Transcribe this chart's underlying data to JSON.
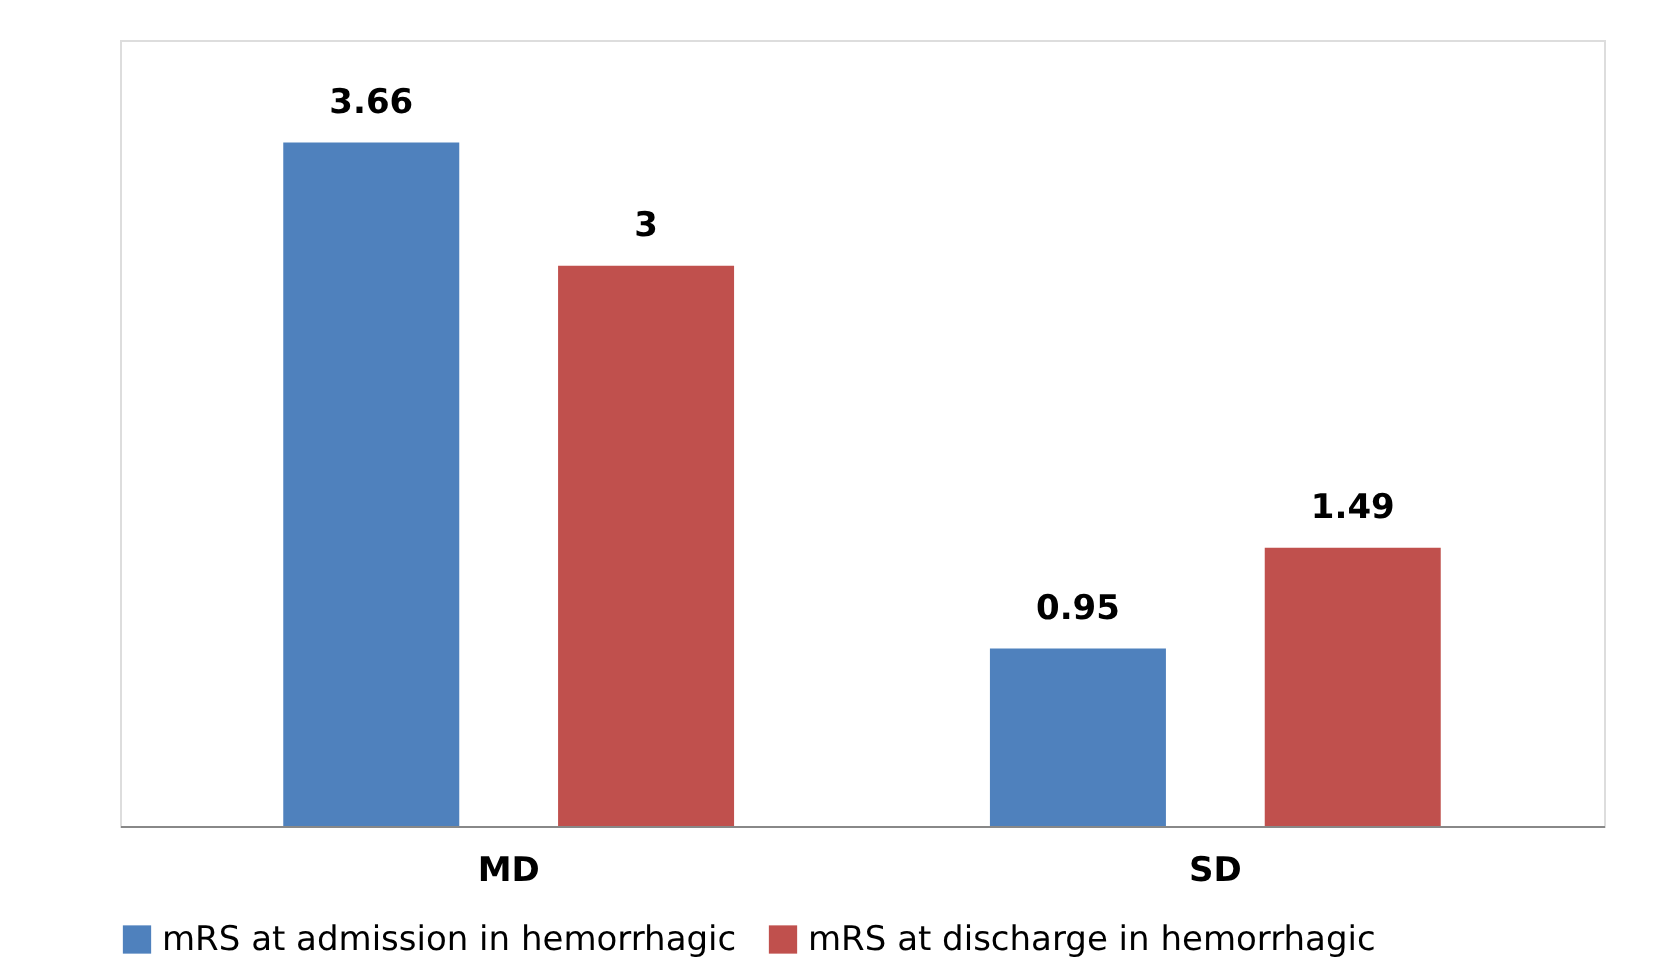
{
  "chart_data": {
    "type": "bar",
    "categories": [
      "MD",
      "SD"
    ],
    "series": [
      {
        "name": "mRS at admission in hemorrhagic",
        "color": "#4f81bd",
        "values": [
          3.66,
          0.95
        ]
      },
      {
        "name": "mRS at discharge in hemorrhagic",
        "color": "#c0504d",
        "values": [
          3,
          1.49
        ]
      }
    ],
    "data_labels": true,
    "legend": "bottom",
    "grid": false
  }
}
